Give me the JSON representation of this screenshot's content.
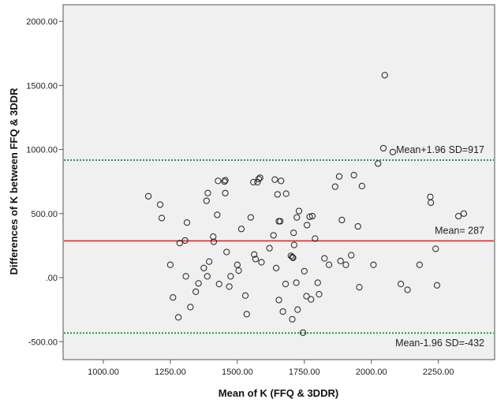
{
  "chart_data": {
    "type": "scatter",
    "xlabel": "Mean of  K (FFQ & 3DDR)",
    "ylabel": "Differences of K between FFQ & 3DDR",
    "xlim": [
      850,
      2460
    ],
    "ylim": [
      -640,
      2130
    ],
    "xticks": [
      1000,
      1250,
      1500,
      1750,
      2000,
      2250
    ],
    "xtick_labels": [
      "1000.00",
      "1250.00",
      "1500.00",
      "1750.00",
      "2000.00",
      "2250.00"
    ],
    "yticks": [
      -500,
      0,
      500,
      1000,
      1500,
      2000
    ],
    "ytick_labels": [
      "-500.00",
      ".00",
      "500.00",
      "1000.00",
      "1500.00",
      "2000.00"
    ],
    "grid": false,
    "background": "#f0f0f0",
    "reference_lines": [
      {
        "y": 917,
        "label": "Mean+1.96 SD=917",
        "style": "dotted",
        "color": "#1a9e4a"
      },
      {
        "y": 287,
        "label": "Mean= 287",
        "style": "solid",
        "color": "#ee2222"
      },
      {
        "y": -432,
        "label": "Mean-1.96 SD=-432",
        "style": "dotted",
        "color": "#1a9e4a"
      }
    ],
    "points": [
      [
        1168,
        635
      ],
      [
        1212,
        570
      ],
      [
        1218,
        465
      ],
      [
        1250,
        100
      ],
      [
        1260,
        -155
      ],
      [
        1280,
        -310
      ],
      [
        1285,
        270
      ],
      [
        1305,
        290
      ],
      [
        1308,
        10
      ],
      [
        1312,
        430
      ],
      [
        1325,
        -230
      ],
      [
        1345,
        -110
      ],
      [
        1355,
        -45
      ],
      [
        1375,
        75
      ],
      [
        1385,
        600
      ],
      [
        1388,
        10
      ],
      [
        1390,
        660
      ],
      [
        1395,
        125
      ],
      [
        1410,
        320
      ],
      [
        1412,
        280
      ],
      [
        1425,
        490
      ],
      [
        1428,
        755
      ],
      [
        1432,
        -50
      ],
      [
        1452,
        750
      ],
      [
        1455,
        660
      ],
      [
        1460,
        200
      ],
      [
        1470,
        -70
      ],
      [
        1475,
        10
      ],
      [
        1500,
        100
      ],
      [
        1505,
        55
      ],
      [
        1515,
        380
      ],
      [
        1530,
        -140
      ],
      [
        1535,
        -285
      ],
      [
        1550,
        470
      ],
      [
        1560,
        745
      ],
      [
        1563,
        180
      ],
      [
        1568,
        145
      ],
      [
        1575,
        745
      ],
      [
        1580,
        770
      ],
      [
        1590,
        120
      ],
      [
        1620,
        230
      ],
      [
        1635,
        330
      ],
      [
        1640,
        765
      ],
      [
        1645,
        75
      ],
      [
        1650,
        650
      ],
      [
        1655,
        -175
      ],
      [
        1660,
        440
      ],
      [
        1663,
        755
      ],
      [
        1670,
        -265
      ],
      [
        1680,
        -50
      ],
      [
        1682,
        655
      ],
      [
        1700,
        170
      ],
      [
        1705,
        -325
      ],
      [
        1708,
        155
      ],
      [
        1710,
        350
      ],
      [
        1712,
        255
      ],
      [
        1720,
        -40
      ],
      [
        1722,
        470
      ],
      [
        1725,
        -250
      ],
      [
        1730,
        520
      ],
      [
        1745,
        -430
      ],
      [
        1750,
        50
      ],
      [
        1758,
        -145
      ],
      [
        1760,
        410
      ],
      [
        1770,
        475
      ],
      [
        1775,
        -170
      ],
      [
        1780,
        480
      ],
      [
        1790,
        305
      ],
      [
        1800,
        -40
      ],
      [
        1805,
        -130
      ],
      [
        1825,
        150
      ],
      [
        1842,
        100
      ],
      [
        1865,
        710
      ],
      [
        1880,
        790
      ],
      [
        1885,
        130
      ],
      [
        1890,
        450
      ],
      [
        1905,
        100
      ],
      [
        1925,
        175
      ],
      [
        1935,
        800
      ],
      [
        1950,
        400
      ],
      [
        1955,
        -75
      ],
      [
        1965,
        715
      ],
      [
        2008,
        100
      ],
      [
        2025,
        890
      ],
      [
        2045,
        1010
      ],
      [
        2050,
        1580
      ],
      [
        2080,
        980
      ],
      [
        2110,
        -50
      ],
      [
        2135,
        -95
      ],
      [
        2180,
        100
      ],
      [
        2220,
        630
      ],
      [
        2222,
        585
      ],
      [
        2240,
        225
      ],
      [
        2245,
        -60
      ],
      [
        2325,
        480
      ],
      [
        2345,
        500
      ],
      [
        1455,
        760
      ],
      [
        1705,
        160
      ],
      [
        1655,
        440
      ],
      [
        1585,
        780
      ]
    ]
  }
}
